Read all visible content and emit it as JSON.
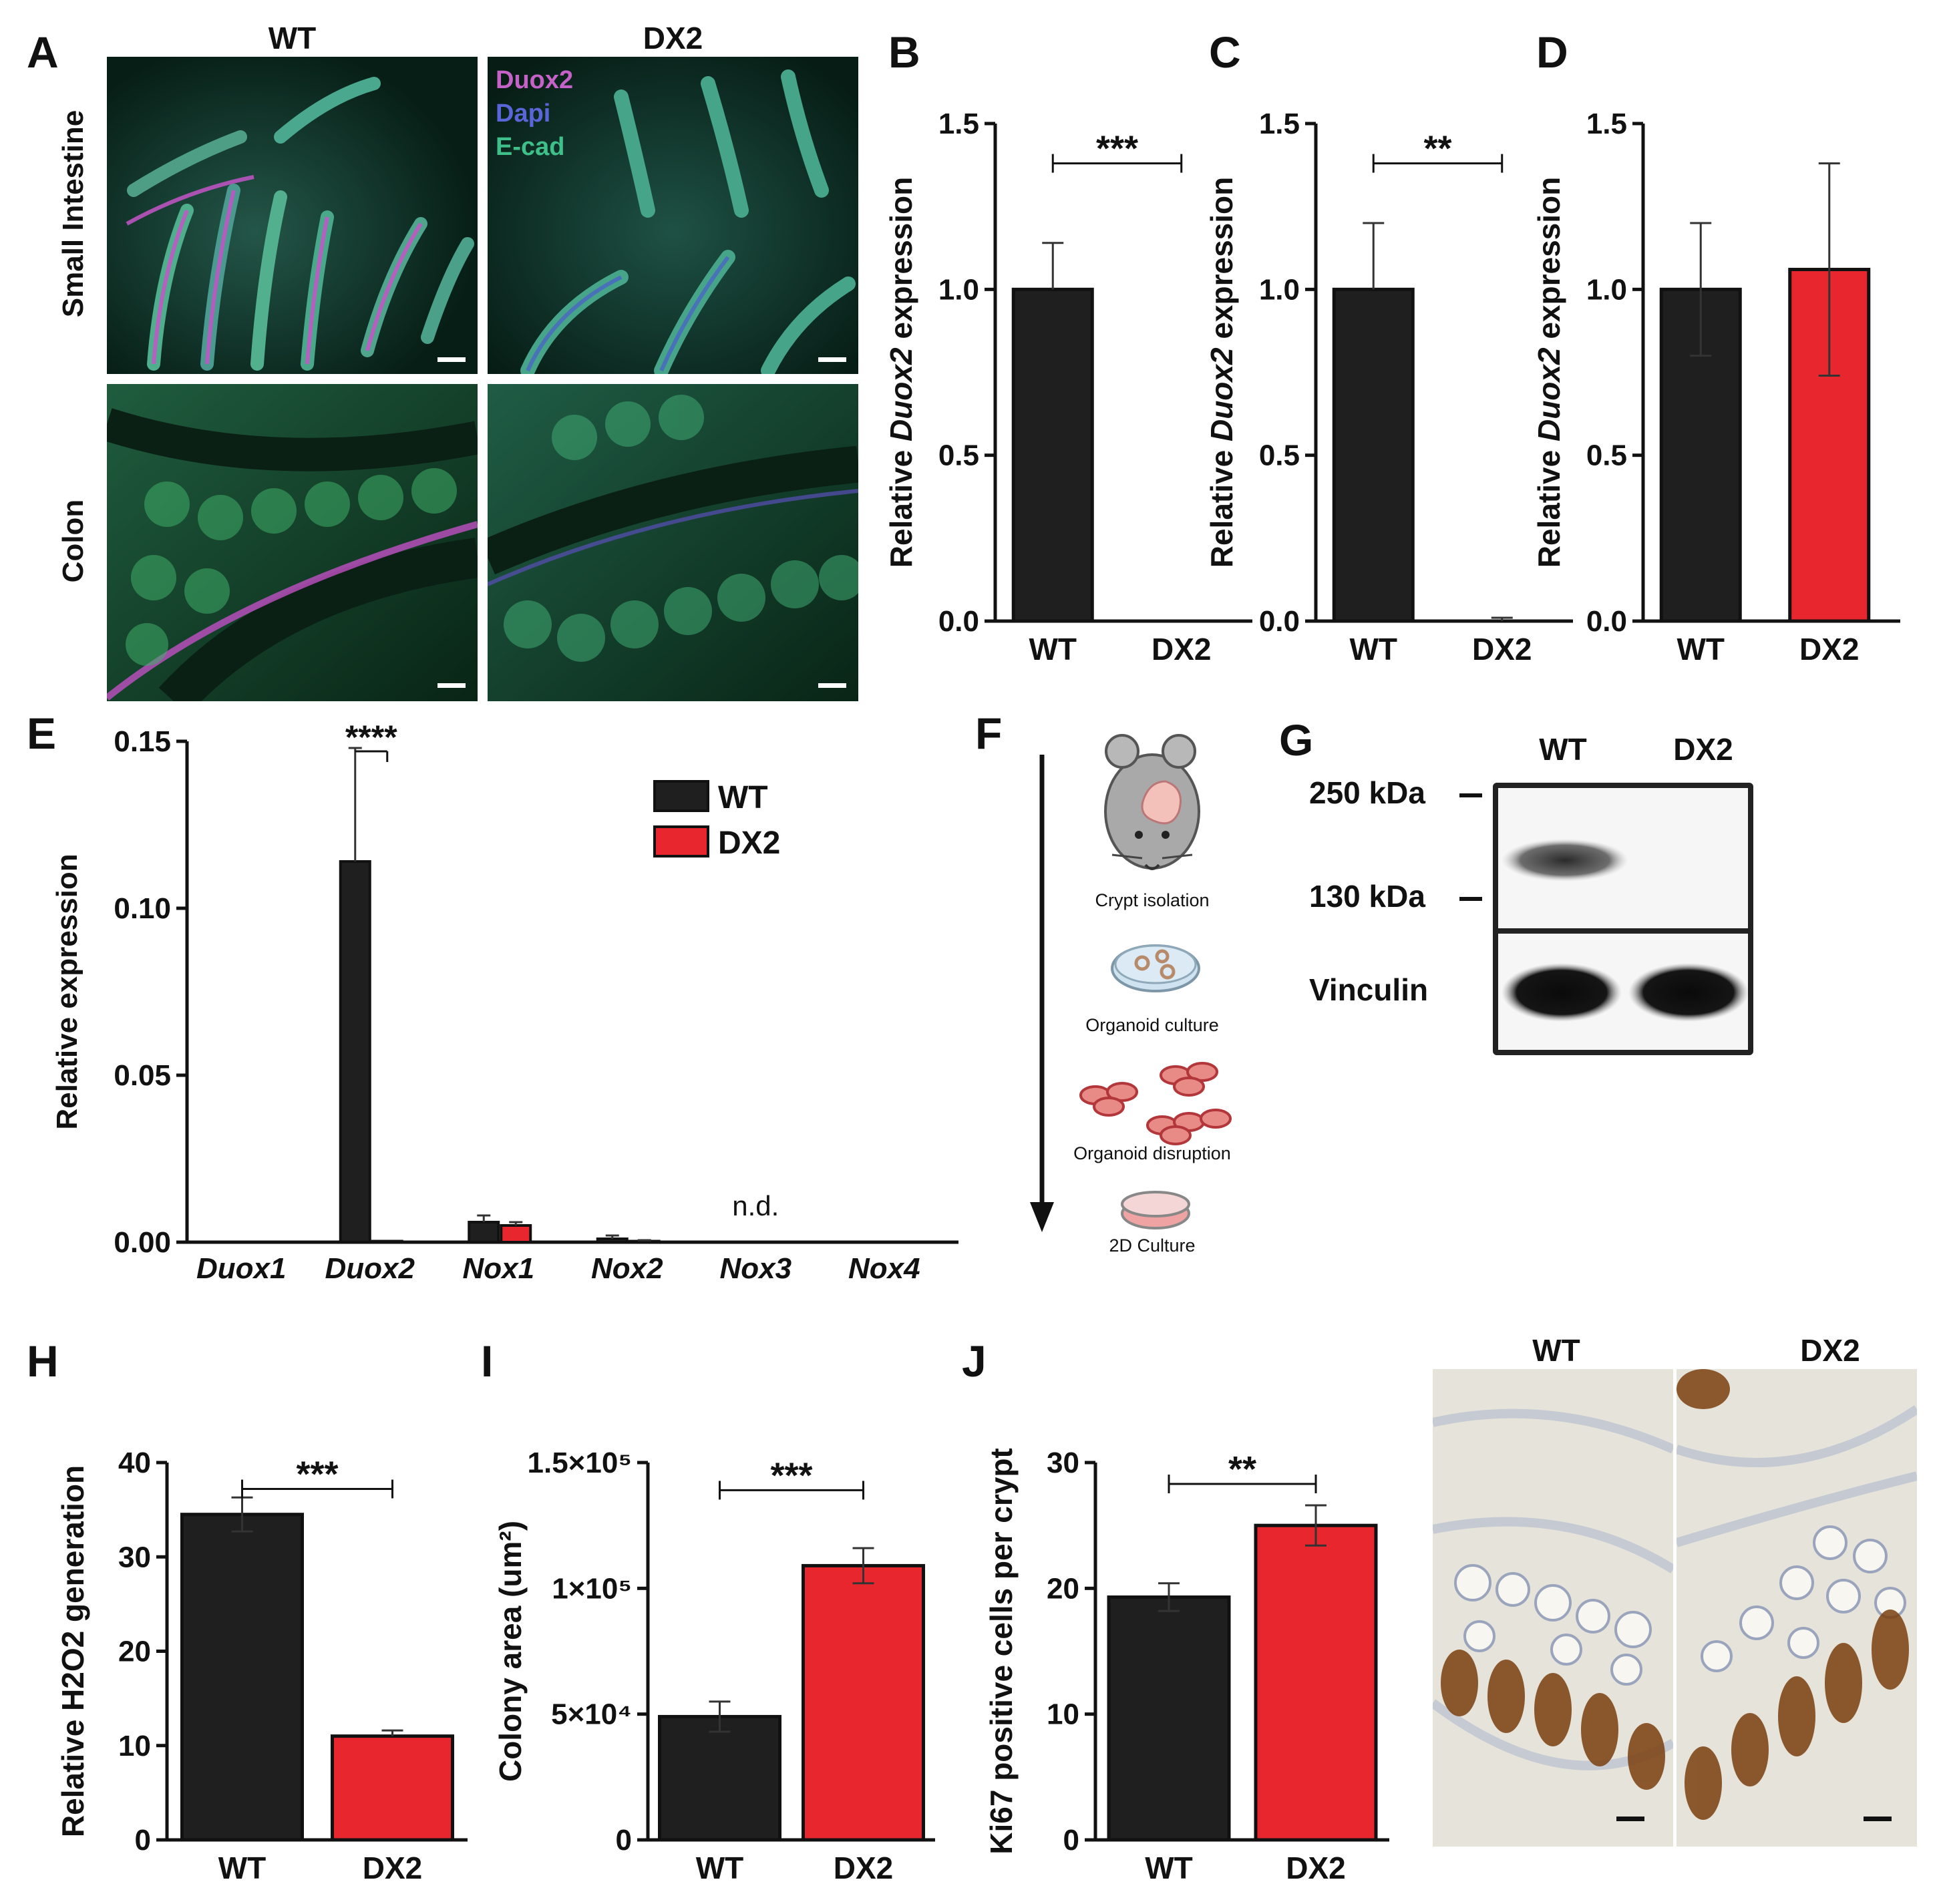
{
  "panels": {
    "A": {
      "letter": "A",
      "col_labels": [
        "WT",
        "DX2"
      ],
      "row_labels": [
        "Small Intestine",
        "Colon"
      ],
      "legend": [
        {
          "label": "Duox2",
          "color": "#c462c8"
        },
        {
          "label": "Dapi",
          "color": "#5a66d8"
        },
        {
          "label": "E-cad",
          "color": "#3fbf8a"
        }
      ]
    },
    "F": {
      "letter": "F",
      "steps": [
        "Crypt isolation",
        "Organoid culture",
        "Organoid disruption",
        "2D Culture"
      ]
    },
    "G": {
      "letter": "G",
      "lanes": [
        "WT",
        "DX2"
      ],
      "markers": [
        "250 kDa",
        "130 kDa"
      ],
      "loading_control": "Vinculin"
    },
    "J_image": {
      "labels": [
        "WT",
        "DX2"
      ]
    }
  },
  "colors": {
    "wt": "#1f1f1f",
    "dx2": "#e8262e",
    "axis": "#111111"
  },
  "chart_data": [
    {
      "id": "B",
      "letter": "B",
      "type": "bar",
      "categories": [
        "WT",
        "DX2"
      ],
      "values": [
        1.0,
        0.0
      ],
      "errors": [
        0.14,
        0.0
      ],
      "colors": [
        "wt",
        "wt"
      ],
      "ylabel_parts": [
        "Relative ",
        "Duox2",
        " expression"
      ],
      "ylim": [
        0,
        1.5
      ],
      "yticks": [
        0.0,
        0.5,
        1.0,
        1.5
      ],
      "yticklabels": [
        "0.0",
        "0.5",
        "1.0",
        "1.5"
      ],
      "sig": {
        "label": "***",
        "from": 0,
        "to": 1,
        "y": 1.38
      }
    },
    {
      "id": "C",
      "letter": "C",
      "type": "bar",
      "categories": [
        "WT",
        "DX2"
      ],
      "values": [
        1.0,
        0.0
      ],
      "errors": [
        0.2,
        0.01
      ],
      "colors": [
        "wt",
        "wt"
      ],
      "ylabel_parts": [
        "Relative ",
        "Duox2",
        " expression"
      ],
      "ylim": [
        0,
        1.5
      ],
      "yticks": [
        0.0,
        0.5,
        1.0,
        1.5
      ],
      "yticklabels": [
        "0.0",
        "0.5",
        "1.0",
        "1.5"
      ],
      "sig": {
        "label": "**",
        "from": 0,
        "to": 1,
        "y": 1.38
      }
    },
    {
      "id": "D",
      "letter": "D",
      "type": "bar",
      "categories": [
        "WT",
        "DX2"
      ],
      "values": [
        1.0,
        1.06
      ],
      "errors": [
        0.2,
        0.32
      ],
      "colors": [
        "wt",
        "dx2"
      ],
      "ylabel_parts": [
        "Relative ",
        "Duox2",
        " expression"
      ],
      "ylim": [
        0,
        1.5
      ],
      "yticks": [
        0.0,
        0.5,
        1.0,
        1.5
      ],
      "yticklabels": [
        "0.0",
        "0.5",
        "1.0",
        "1.5"
      ]
    },
    {
      "id": "E",
      "letter": "E",
      "type": "bar",
      "categories": [
        "Duox1",
        "Duox2",
        "Nox1",
        "Nox2",
        "Nox3",
        "Nox4"
      ],
      "series": [
        {
          "name": "WT",
          "color": "wt",
          "values": [
            0.0,
            0.114,
            0.006,
            0.001,
            0.0,
            0.0
          ],
          "errors": [
            0,
            0.034,
            0.002,
            0.001,
            0,
            0
          ]
        },
        {
          "name": "DX2",
          "color": "dx2",
          "values": [
            0.0,
            0.0003,
            0.005,
            0.0003,
            0.0,
            0.0
          ],
          "errors": [
            0,
            0,
            0.001,
            0.0003,
            0,
            0
          ]
        }
      ],
      "ylabel": "Relative expression",
      "ylim": [
        0,
        0.15
      ],
      "yticks": [
        0.0,
        0.05,
        0.1,
        0.15
      ],
      "yticklabels": [
        "0.00",
        "0.05",
        "0.10",
        "0.15"
      ],
      "sig": {
        "label": "****",
        "category": 1,
        "y": 0.147
      },
      "annotation": {
        "label": "n.d.",
        "category": 4,
        "y": 0.008
      },
      "legend": "top-right"
    },
    {
      "id": "H",
      "letter": "H",
      "type": "bar",
      "categories": [
        "WT",
        "DX2"
      ],
      "values": [
        34.5,
        11.0
      ],
      "errors": [
        1.8,
        0.6
      ],
      "colors": [
        "wt",
        "dx2"
      ],
      "ylabel": "Relative H2O2 generation",
      "ylim": [
        0,
        40
      ],
      "yticks": [
        0,
        10,
        20,
        30,
        40
      ],
      "yticklabels": [
        "0",
        "10",
        "20",
        "30",
        "40"
      ],
      "sig": {
        "label": "***",
        "from": 0,
        "to": 1,
        "y": 37.2
      }
    },
    {
      "id": "I",
      "letter": "I",
      "type": "bar",
      "categories": [
        "WT",
        "DX2"
      ],
      "values": [
        49000,
        109000
      ],
      "errors": [
        6000,
        7000
      ],
      "colors": [
        "wt",
        "dx2"
      ],
      "ylabel": "Colony area (um²)",
      "ylim": [
        0,
        150000
      ],
      "yticks": [
        0,
        50000,
        100000,
        150000
      ],
      "yticklabels": [
        "0",
        "5×10⁴",
        "1×10⁵",
        "1.5×10⁵"
      ],
      "sig": {
        "label": "***",
        "from": 0,
        "to": 1,
        "y": 139000
      }
    },
    {
      "id": "J",
      "letter": "J",
      "type": "bar",
      "categories": [
        "WT",
        "DX2"
      ],
      "values": [
        19.3,
        25.0
      ],
      "errors": [
        1.1,
        1.6
      ],
      "colors": [
        "wt",
        "dx2"
      ],
      "ylabel": "Ki67 positive cells per crypt",
      "ylim": [
        0,
        30
      ],
      "yticks": [
        0,
        10,
        20,
        30
      ],
      "yticklabels": [
        "0",
        "10",
        "20",
        "30"
      ],
      "sig": {
        "label": "**",
        "from": 0,
        "to": 1,
        "y": 28.3
      }
    }
  ]
}
